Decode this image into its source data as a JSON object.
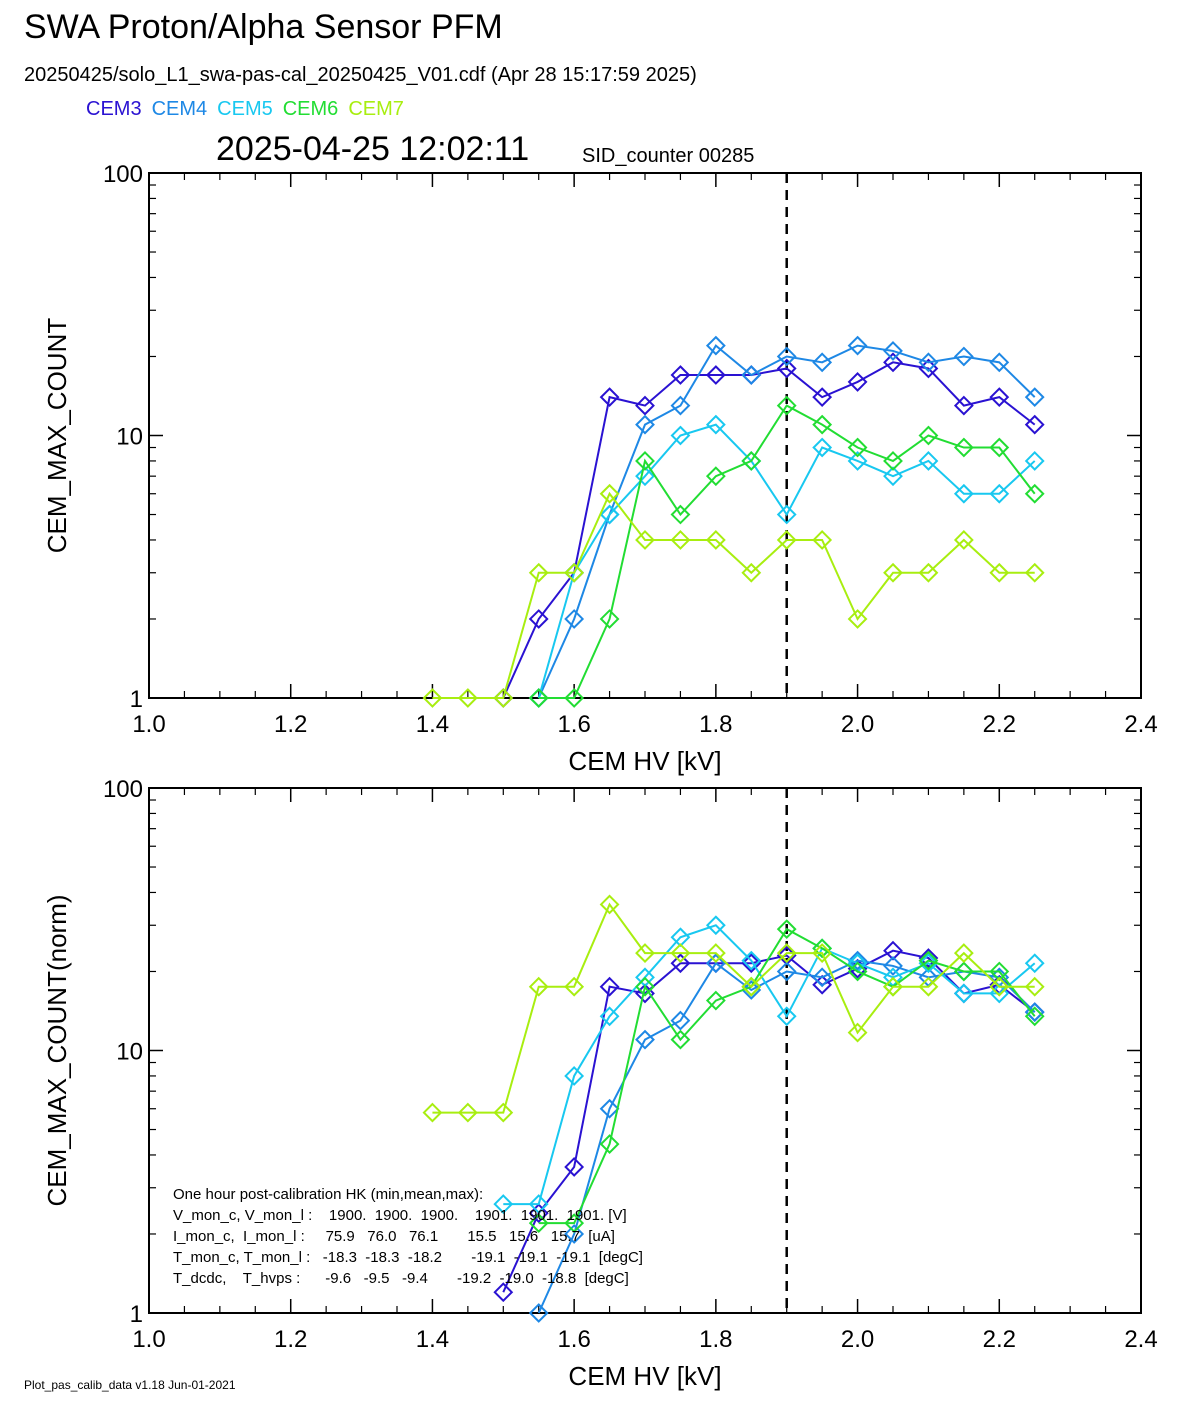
{
  "header": {
    "title": "SWA Proton/Alpha Sensor PFM",
    "subtitle": "20250425/solo_L1_swa-pas-cal_20250425_V01.cdf  (Apr 28 15:17:59 2025)",
    "timestamp": "2025-04-25 12:02:11",
    "sid_counter": "SID_counter 00285"
  },
  "legend": [
    {
      "label": "CEM3",
      "color": "#2a12d2"
    },
    {
      "label": "CEM4",
      "color": "#1e88e5"
    },
    {
      "label": "CEM5",
      "color": "#18c8f0"
    },
    {
      "label": "CEM6",
      "color": "#22dd33"
    },
    {
      "label": "CEM7",
      "color": "#a8ee10"
    }
  ],
  "footer": "Plot_pas_calib_data v1.18 Jun-01-2021",
  "chart_data": [
    {
      "type": "line",
      "ylabel": "CEM_MAX_COUNT",
      "xlabel": "CEM HV [kV]",
      "xlim": [
        1.0,
        2.4
      ],
      "ylim": [
        1,
        100
      ],
      "yscale": "log",
      "x_ticks": [
        "1.0",
        "1.2",
        "1.4",
        "1.6",
        "1.8",
        "2.0",
        "2.2",
        "2.4"
      ],
      "y_ticks": [
        "1",
        "10",
        "100"
      ],
      "reference_line_x": 1.9,
      "series": [
        {
          "name": "CEM3",
          "x": [
            1.5,
            1.55,
            1.6,
            1.65,
            1.7,
            1.75,
            1.8,
            1.85,
            1.9,
            1.95,
            2.0,
            2.05,
            2.1,
            2.15,
            2.2,
            2.25
          ],
          "values": [
            1,
            2,
            3,
            14,
            13,
            17,
            17,
            17,
            18,
            14,
            16,
            19,
            18,
            13,
            14,
            11
          ]
        },
        {
          "name": "CEM4",
          "x": [
            1.55,
            1.6,
            1.65,
            1.7,
            1.75,
            1.8,
            1.85,
            1.9,
            1.95,
            2.0,
            2.05,
            2.1,
            2.15,
            2.2,
            2.25
          ],
          "values": [
            1,
            2,
            5,
            11,
            13,
            22,
            17,
            20,
            19,
            22,
            21,
            19,
            20,
            19,
            14
          ]
        },
        {
          "name": "CEM5",
          "x": [
            1.55,
            1.6,
            1.65,
            1.7,
            1.75,
            1.8,
            1.85,
            1.9,
            1.95,
            2.0,
            2.05,
            2.1,
            2.15,
            2.2,
            2.25
          ],
          "values": [
            1,
            3,
            5,
            7,
            10,
            11,
            8,
            5,
            9,
            8,
            7,
            8,
            6,
            6,
            8
          ]
        },
        {
          "name": "CEM6",
          "x": [
            1.55,
            1.6,
            1.65,
            1.7,
            1.75,
            1.8,
            1.85,
            1.9,
            1.95,
            2.0,
            2.05,
            2.1,
            2.15,
            2.2,
            2.25
          ],
          "values": [
            1,
            1,
            2,
            8,
            5,
            7,
            8,
            13,
            11,
            9,
            8,
            10,
            9,
            9,
            6
          ]
        },
        {
          "name": "CEM7",
          "x": [
            1.4,
            1.45,
            1.5,
            1.55,
            1.6,
            1.65,
            1.7,
            1.75,
            1.8,
            1.85,
            1.9,
            1.95,
            2.0,
            2.05,
            2.1,
            2.15,
            2.2,
            2.25
          ],
          "values": [
            1,
            1,
            1,
            3,
            3,
            6,
            4,
            4,
            4,
            3,
            4,
            4,
            2,
            3,
            3,
            4,
            3,
            3
          ]
        }
      ]
    },
    {
      "type": "line",
      "ylabel": "CEM_MAX_COUNT(norm)",
      "xlabel": "CEM HV [kV]",
      "xlim": [
        1.0,
        2.4
      ],
      "ylim": [
        1,
        100
      ],
      "yscale": "log",
      "x_ticks": [
        "1.0",
        "1.2",
        "1.4",
        "1.6",
        "1.8",
        "2.0",
        "2.2",
        "2.4"
      ],
      "y_ticks": [
        "1",
        "10",
        "100"
      ],
      "reference_line_x": 1.9,
      "series": [
        {
          "name": "CEM3",
          "x": [
            1.5,
            1.55,
            1.6,
            1.65,
            1.7,
            1.75,
            1.8,
            1.85,
            1.9,
            1.95,
            2.0,
            2.05,
            2.1,
            2.15,
            2.2,
            2.25
          ],
          "values": [
            1.2,
            2.4,
            3.6,
            17.5,
            16.5,
            21.5,
            21.5,
            21.5,
            23,
            17.8,
            20.5,
            24,
            22.5,
            16.5,
            17.8,
            14
          ]
        },
        {
          "name": "CEM4",
          "x": [
            1.55,
            1.6,
            1.65,
            1.7,
            1.75,
            1.8,
            1.85,
            1.9,
            1.95,
            2.0,
            2.05,
            2.1,
            2.15,
            2.2,
            2.25
          ],
          "values": [
            1,
            2,
            6,
            11,
            13,
            21.5,
            17,
            20,
            19,
            22,
            21,
            19,
            20,
            19,
            14
          ]
        },
        {
          "name": "CEM5",
          "x": [
            1.5,
            1.55,
            1.6,
            1.65,
            1.7,
            1.75,
            1.8,
            1.85,
            1.9,
            1.95,
            2.0,
            2.05,
            2.1,
            2.15,
            2.2,
            2.25
          ],
          "values": [
            2.6,
            2.6,
            8,
            13.5,
            19,
            27,
            30,
            22,
            13.5,
            24.5,
            21.5,
            19,
            21.5,
            16.5,
            16.5,
            21.5
          ]
        },
        {
          "name": "CEM6",
          "x": [
            1.55,
            1.6,
            1.65,
            1.7,
            1.75,
            1.8,
            1.85,
            1.9,
            1.95,
            2.0,
            2.05,
            2.1,
            2.15,
            2.2,
            2.25
          ],
          "values": [
            2.2,
            2.2,
            4.4,
            17.5,
            11,
            15.5,
            17.5,
            29,
            24.5,
            20,
            17.5,
            22,
            20,
            20,
            13.5
          ]
        },
        {
          "name": "CEM7",
          "x": [
            1.4,
            1.45,
            1.5,
            1.55,
            1.6,
            1.65,
            1.7,
            1.75,
            1.8,
            1.85,
            1.9,
            1.95,
            2.0,
            2.05,
            2.1,
            2.15,
            2.2,
            2.25
          ],
          "values": [
            5.8,
            5.8,
            5.8,
            17.5,
            17.5,
            36,
            23.5,
            23.5,
            23.5,
            17.5,
            23.5,
            23.5,
            11.7,
            17.5,
            17.5,
            23.5,
            17.5,
            17.5
          ]
        }
      ]
    }
  ],
  "hk_table": {
    "heading": "One hour post-calibration HK (min,mean,max):",
    "rows": [
      "V_mon_c, V_mon_l :    1900.  1900.  1900.    1901.  1901.  1901. [V]",
      "I_mon_c,  I_mon_l :     75.9   76.0   76.1       15.5   15.6   15.7  [uA]",
      "T_mon_c, T_mon_l :   -18.3  -18.3  -18.2       -19.1  -19.1  -19.1  [degC]",
      "T_dcdc,    T_hvps :      -9.6   -9.5   -9.4       -19.2  -19.0  -18.8  [degC]"
    ]
  }
}
